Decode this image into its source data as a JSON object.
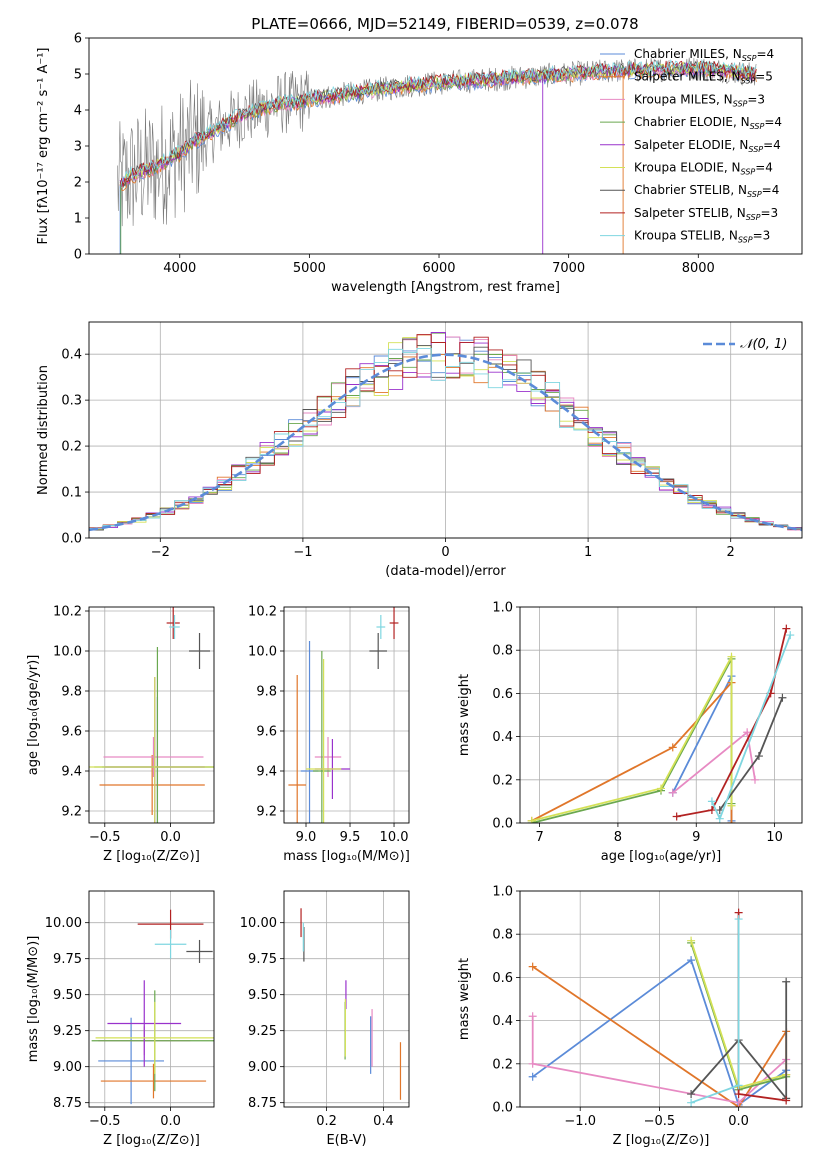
{
  "figure_title": "PLATE=0666, MJD=52149, FIBERID=0539, z=0.078",
  "legend_models": [
    {
      "label": "Chabrier MILES, N",
      "sub": "SSP",
      "tail": "=4",
      "color": "#5b8bd8"
    },
    {
      "label": "Salpeter MILES, N",
      "sub": "SSP",
      "tail": "=5",
      "color": "#e0762a"
    },
    {
      "label": "Kroupa MILES, N",
      "sub": "SSP",
      "tail": "=3",
      "color": "#e78ac3"
    },
    {
      "label": "Chabrier ELODIE, N",
      "sub": "SSP",
      "tail": "=4",
      "color": "#6aa84f"
    },
    {
      "label": "Salpeter ELODIE, N",
      "sub": "SSP",
      "tail": "=4",
      "color": "#9932cc"
    },
    {
      "label": "Kroupa ELODIE, N",
      "sub": "SSP",
      "tail": "=4",
      "color": "#d4e157"
    },
    {
      "label": "Chabrier STELIB, N",
      "sub": "SSP",
      "tail": "=4",
      "color": "#555555"
    },
    {
      "label": "Salpeter STELIB, N",
      "sub": "SSP",
      "tail": "=3",
      "color": "#b22222"
    },
    {
      "label": "Kroupa STELIB, N",
      "sub": "SSP",
      "tail": "=3",
      "color": "#7fd6e0"
    }
  ],
  "chart_data": [
    {
      "type": "line",
      "panel": "spectrum",
      "xlabel": "wavelength [Angstrom, rest frame]",
      "ylabel": "Flux [fλ10⁻¹⁷ erg cm⁻² s⁻¹ A⁻¹]",
      "xlim": [
        3300,
        8800
      ],
      "ylim": [
        0,
        6
      ],
      "xticks": [
        4000,
        5000,
        6000,
        7000,
        8000
      ],
      "yticks": [
        0,
        1,
        2,
        3,
        4,
        5,
        6
      ],
      "data_x": [
        3540,
        3600,
        3700,
        3800,
        3900,
        4000,
        4100,
        4200,
        4300,
        4400,
        4500,
        4600,
        4700,
        4800,
        4900,
        5000,
        5200,
        5400,
        5600,
        5800,
        6000,
        6200,
        6400,
        6600,
        6800,
        7000,
        7200,
        7400,
        7600,
        7800,
        8000,
        8200,
        8400
      ],
      "data_y": [
        1.9,
        2.1,
        2.3,
        2.4,
        2.6,
        2.8,
        3.1,
        3.3,
        3.5,
        3.7,
        3.9,
        4.0,
        4.1,
        4.2,
        4.2,
        4.3,
        4.4,
        4.5,
        4.6,
        4.7,
        4.75,
        4.8,
        4.85,
        4.9,
        4.95,
        5.0,
        5.05,
        5.1,
        5.1,
        5.15,
        5.15,
        5.1,
        5.0
      ],
      "grid": false
    },
    {
      "type": "line",
      "panel": "residuals",
      "xlabel": "(data-model)/error",
      "ylabel": "Normed distribution",
      "xlim": [
        -2.5,
        2.5
      ],
      "ylim": [
        0,
        0.47
      ],
      "xticks": [
        -2,
        -1,
        0,
        1,
        2
      ],
      "yticks": [
        0.0,
        0.1,
        0.2,
        0.3,
        0.4
      ],
      "series": [
        {
          "name": "𝒩(0, 1)",
          "style": "dashed",
          "function": "gaussian",
          "mean": 0,
          "sigma": 1
        }
      ],
      "grid": true,
      "legend": "top-right"
    },
    {
      "type": "scatter",
      "panel": "age-vs-Z",
      "xlabel": "Z [log₁₀(Z/Z⊙)]",
      "ylabel": "age  [log₁₀(age/yr)]",
      "xlim": [
        -0.62,
        0.33
      ],
      "ylim": [
        9.14,
        10.22
      ],
      "xticks": [
        -0.5,
        0.0
      ],
      "yticks": [
        9.2,
        9.4,
        9.6,
        9.8,
        10.0,
        10.2
      ],
      "points": [
        {
          "x": -0.1,
          "y": 9.42,
          "xerr": 0.42,
          "yerr": 0.35,
          "model": 0
        },
        {
          "x": -0.14,
          "y": 9.33,
          "xerr": 0.4,
          "yerr": 0.15,
          "model": 1
        },
        {
          "x": -0.13,
          "y": 9.47,
          "xerr": 0.38,
          "yerr": 0.1,
          "model": 2
        },
        {
          "x": -0.1,
          "y": 9.42,
          "xerr": 0.48,
          "yerr": 0.6,
          "model": 3
        },
        {
          "x": -0.12,
          "y": 9.42,
          "xerr": 0.38,
          "yerr": 0.45,
          "model": 4
        },
        {
          "x": -0.12,
          "y": 9.42,
          "xerr": 0.5,
          "yerr": 0.45,
          "model": 5
        },
        {
          "x": 0.22,
          "y": 10.0,
          "xerr": 0.08,
          "yerr": 0.09,
          "model": 6
        },
        {
          "x": 0.02,
          "y": 10.14,
          "xerr": 0.05,
          "yerr": 0.08,
          "model": 7
        },
        {
          "x": 0.03,
          "y": 10.12,
          "xerr": 0.04,
          "yerr": 0.06,
          "model": 8
        }
      ],
      "grid": true
    },
    {
      "type": "scatter",
      "panel": "age-vs-mass",
      "xlabel": "mass [log₁₀(M/M⊙)]",
      "ylabel": "",
      "xlim": [
        8.75,
        10.17
      ],
      "ylim": [
        9.14,
        10.22
      ],
      "xticks": [
        9.0,
        9.5,
        10.0
      ],
      "yticks": [
        9.2,
        9.4,
        9.6,
        9.8,
        10.0,
        10.2
      ],
      "points": [
        {
          "x": 9.04,
          "y": 9.4,
          "xerr": 0.1,
          "yerr": 0.65,
          "model": 0
        },
        {
          "x": 8.9,
          "y": 9.33,
          "xerr": 0.1,
          "yerr": 0.55,
          "model": 1
        },
        {
          "x": 9.25,
          "y": 9.47,
          "xerr": 0.15,
          "yerr": 0.1,
          "model": 2
        },
        {
          "x": 9.18,
          "y": 9.4,
          "xerr": 0.1,
          "yerr": 0.6,
          "model": 3
        },
        {
          "x": 9.3,
          "y": 9.41,
          "xerr": 0.2,
          "yerr": 0.15,
          "model": 4
        },
        {
          "x": 9.2,
          "y": 9.41,
          "xerr": 0.2,
          "yerr": 0.55,
          "model": 5
        },
        {
          "x": 9.82,
          "y": 10.0,
          "xerr": 0.1,
          "yerr": 0.09,
          "model": 6
        },
        {
          "x": 10.0,
          "y": 10.14,
          "xerr": 0.05,
          "yerr": 0.08,
          "model": 7
        },
        {
          "x": 9.85,
          "y": 10.12,
          "xerr": 0.05,
          "yerr": 0.06,
          "model": 8
        }
      ],
      "grid": true
    },
    {
      "type": "line",
      "panel": "massweight-vs-age",
      "xlabel": "age  [log₁₀(age/yr)]",
      "ylabel": "mass weight",
      "xlim": [
        6.75,
        10.35
      ],
      "ylim": [
        0,
        1
      ],
      "xticks": [
        7,
        8,
        9,
        10
      ],
      "yticks": [
        0.0,
        0.2,
        0.4,
        0.6,
        0.8,
        1.0
      ],
      "series": [
        {
          "model": 0,
          "x": [
            8.7,
            9.45,
            9.45
          ],
          "y": [
            0.14,
            0.68,
            0.01
          ]
        },
        {
          "model": 1,
          "x": [
            6.9,
            8.7,
            9.45,
            9.45
          ],
          "y": [
            0.01,
            0.35,
            0.65,
            0.0
          ]
        },
        {
          "model": 2,
          "x": [
            8.7,
            9.65,
            9.75
          ],
          "y": [
            0.14,
            0.42,
            0.2
          ]
        },
        {
          "model": 3,
          "x": [
            6.9,
            8.55,
            9.45,
            9.45
          ],
          "y": [
            0.0,
            0.15,
            0.76,
            0.09
          ]
        },
        {
          "model": 5,
          "x": [
            6.9,
            8.55,
            9.45,
            9.45
          ],
          "y": [
            0.01,
            0.16,
            0.77,
            0.08
          ]
        },
        {
          "model": 6,
          "x": [
            9.3,
            9.8,
            10.1
          ],
          "y": [
            0.06,
            0.31,
            0.58
          ]
        },
        {
          "model": 7,
          "x": [
            8.75,
            9.2,
            9.95,
            10.15
          ],
          "y": [
            0.03,
            0.06,
            0.6,
            0.9
          ]
        },
        {
          "model": 8,
          "x": [
            9.2,
            9.3,
            10.2
          ],
          "y": [
            0.1,
            0.02,
            0.87
          ]
        }
      ],
      "grid": true
    },
    {
      "type": "scatter",
      "panel": "mass-vs-Z",
      "xlabel": "Z [log₁₀(Z/Z⊙)]",
      "ylabel": "mass [log₁₀(M/M⊙)]",
      "xlim": [
        -0.62,
        0.33
      ],
      "ylim": [
        8.72,
        10.22
      ],
      "xticks": [
        -0.5,
        0.0
      ],
      "yticks": [
        8.75,
        9.0,
        9.25,
        9.5,
        9.75,
        10.0
      ],
      "points": [
        {
          "x": -0.3,
          "y": 9.04,
          "xerr": 0.25,
          "yerr": 0.3,
          "model": 0
        },
        {
          "x": -0.13,
          "y": 8.9,
          "xerr": 0.4,
          "yerr": 0.12,
          "model": 1
        },
        {
          "x": -0.2,
          "y": 9.18,
          "xerr": 0.35,
          "yerr": 0.1,
          "model": 2
        },
        {
          "x": -0.12,
          "y": 9.18,
          "xerr": 0.48,
          "yerr": 0.35,
          "model": 3
        },
        {
          "x": -0.2,
          "y": 9.3,
          "xerr": 0.28,
          "yerr": 0.3,
          "model": 4
        },
        {
          "x": -0.12,
          "y": 9.2,
          "xerr": 0.45,
          "yerr": 0.25,
          "model": 5
        },
        {
          "x": 0.22,
          "y": 9.8,
          "xerr": 0.1,
          "yerr": 0.08,
          "model": 6
        },
        {
          "x": 0.0,
          "y": 9.99,
          "xerr": 0.25,
          "yerr": 0.1,
          "model": 7
        },
        {
          "x": 0.0,
          "y": 9.85,
          "xerr": 0.12,
          "yerr": 0.1,
          "model": 8
        }
      ],
      "grid": true
    },
    {
      "type": "scatter",
      "panel": "mass-vs-EBV",
      "xlabel": "E(B-V)",
      "ylabel": "",
      "xlim": [
        0.05,
        0.49
      ],
      "ylim": [
        8.72,
        10.22
      ],
      "xticks": [
        0.2,
        0.4
      ],
      "yticks": [
        8.75,
        9.0,
        9.25,
        9.5,
        9.75,
        10.0
      ],
      "points": [
        {
          "x": 0.355,
          "y": 9.15,
          "yerr": 0.2,
          "model": 0
        },
        {
          "x": 0.46,
          "y": 8.97,
          "yerr": 0.2,
          "model": 1
        },
        {
          "x": 0.36,
          "y": 9.2,
          "yerr": 0.2,
          "model": 2
        },
        {
          "x": 0.265,
          "y": 9.25,
          "yerr": 0.2,
          "model": 3
        },
        {
          "x": 0.268,
          "y": 9.5,
          "yerr": 0.1,
          "model": 4
        },
        {
          "x": 0.266,
          "y": 9.27,
          "yerr": 0.2,
          "model": 5
        },
        {
          "x": 0.12,
          "y": 9.85,
          "yerr": 0.12,
          "model": 6
        },
        {
          "x": 0.11,
          "y": 10.0,
          "yerr": 0.1,
          "model": 7
        },
        {
          "x": 0.118,
          "y": 9.9,
          "yerr": 0.1,
          "model": 8
        }
      ],
      "grid": true
    },
    {
      "type": "line",
      "panel": "massweight-vs-Z",
      "xlabel": "Z [log₁₀(Z/Z⊙)]",
      "ylabel": "mass weight",
      "xlim": [
        -1.38,
        0.4
      ],
      "ylim": [
        0,
        1
      ],
      "xticks": [
        -1.0,
        -0.5,
        0.0
      ],
      "yticks": [
        0.0,
        0.2,
        0.4,
        0.6,
        0.8,
        1.0
      ],
      "series": [
        {
          "model": 0,
          "x": [
            -1.3,
            -0.3,
            0.0,
            0.3
          ],
          "y": [
            0.14,
            0.68,
            0.01,
            0.17
          ]
        },
        {
          "model": 1,
          "x": [
            -1.3,
            0.0,
            0.3,
            0.3
          ],
          "y": [
            0.65,
            0.0,
            0.35,
            0.15
          ]
        },
        {
          "model": 2,
          "x": [
            -1.3,
            -1.3,
            0.0,
            0.3
          ],
          "y": [
            0.42,
            0.2,
            0.02,
            0.22
          ]
        },
        {
          "model": 3,
          "x": [
            -0.3,
            0.0,
            0.3
          ],
          "y": [
            0.76,
            0.08,
            0.14
          ]
        },
        {
          "model": 5,
          "x": [
            -0.3,
            0.0,
            0.3
          ],
          "y": [
            0.77,
            0.09,
            0.15
          ]
        },
        {
          "model": 6,
          "x": [
            -0.3,
            0.0,
            0.3,
            0.3
          ],
          "y": [
            0.06,
            0.31,
            0.04,
            0.58
          ]
        },
        {
          "model": 7,
          "x": [
            0.0,
            0.0,
            0.3
          ],
          "y": [
            0.9,
            0.06,
            0.03
          ]
        },
        {
          "model": 8,
          "x": [
            -0.3,
            0.0,
            0.0
          ],
          "y": [
            0.02,
            0.1,
            0.87
          ]
        }
      ],
      "grid": true
    }
  ]
}
